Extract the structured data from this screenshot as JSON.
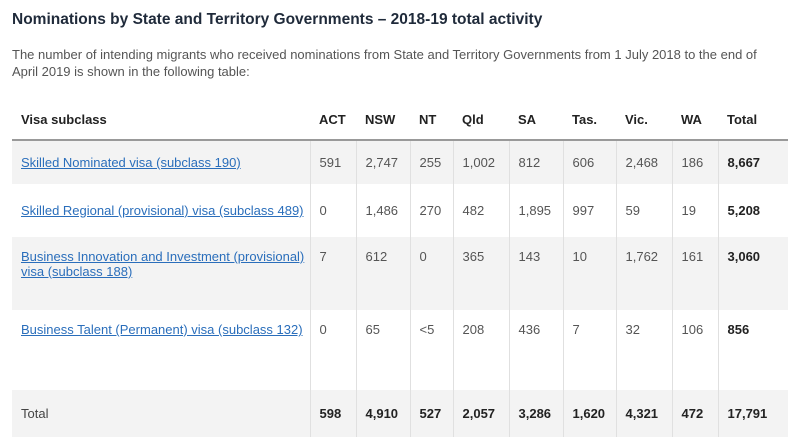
{
  "page": {
    "title": "Nominations by State and Territory Governments – 2018-19 total activity",
    "intro": "The number of intending migrants who received nominations from State and Territory Governments from 1 July 2018 to the end of April 2019 is shown in the following table:"
  },
  "table": {
    "headers": [
      "Visa subclass",
      "ACT",
      "NSW",
      "NT",
      "Qld",
      "SA",
      "Tas.",
      "Vic.",
      "WA",
      "Total"
    ],
    "rows": [
      {
        "label": "Skilled Nominated visa (subclass 190)",
        "values": [
          "591",
          "2,747",
          "255",
          "1,002",
          "812",
          "606",
          "2,468",
          "186"
        ],
        "total": "8,667"
      },
      {
        "label": "Skilled Regional (provisional) visa (subclass 489)",
        "values": [
          "0",
          "1,486",
          "270",
          "482",
          "1,895",
          "997",
          "59",
          "19"
        ],
        "total": "5,208"
      },
      {
        "label": "Business Innovation and Investment (provisional) visa (subclass 188)",
        "values": [
          "7",
          "612",
          "0",
          "365",
          "143",
          "10",
          "1,762",
          "161"
        ],
        "total": "3,060"
      },
      {
        "label": "Business Talent (Permanent) visa (subclass 132)",
        "values": [
          "0",
          "65",
          "<5",
          "208",
          "436",
          "7",
          "32",
          "106"
        ],
        "total": "856"
      }
    ],
    "total_row": {
      "label": "Total",
      "values": [
        "598",
        "4,910",
        "527",
        "2,057",
        "3,286",
        "1,620",
        "4,321",
        "472"
      ],
      "total": "17,791"
    }
  }
}
